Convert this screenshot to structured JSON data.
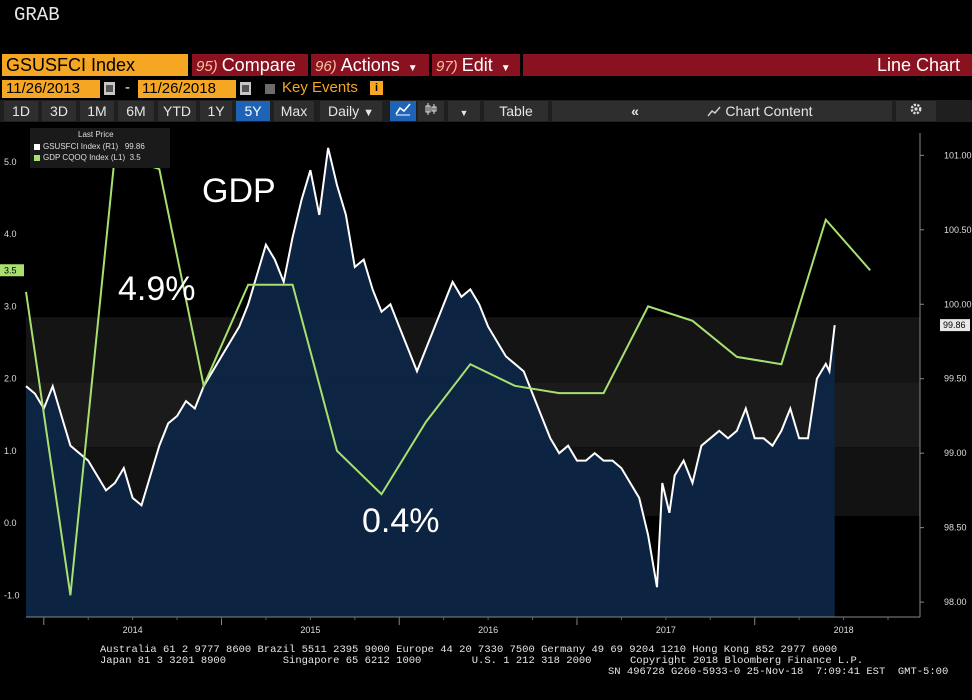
{
  "header": {
    "grab_label": "GRAB"
  },
  "toolbar": {
    "ticker": "GSUSFCI Index",
    "compare_num": "95)",
    "compare_label": "Compare",
    "actions_num": "96)",
    "actions_label": "Actions",
    "edit_num": "97)",
    "edit_label": "Edit",
    "chart_type": "Line Chart"
  },
  "dates": {
    "start": "11/26/2013",
    "end": "11/26/2018",
    "separator": "-",
    "key_events": "Key Events"
  },
  "periods": [
    "1D",
    "3D",
    "1M",
    "6M",
    "YTD",
    "1Y",
    "5Y",
    "Max"
  ],
  "active_period": "5Y",
  "frequency": "Daily",
  "table_label": "Table",
  "chart_content_label": "Chart Content",
  "legend": {
    "header": "Last Price",
    "items": [
      {
        "label": "GSUSFCI Index  (R1)",
        "value": "99.86",
        "color": "#ffffff"
      },
      {
        "label": "GDP CQOQ Index  (L1)",
        "value": "3.5",
        "color": "#a8e070"
      }
    ]
  },
  "annotations": {
    "gdp": "GDP",
    "high": "4.9%",
    "low": "0.4%"
  },
  "footer": {
    "line1": "Australia 61 2 9777 8600 Brazil 5511 2395 9000 Europe 44 20 7330 7500 Germany 49 69 9204 1210 Hong Kong 852 2977 6000",
    "line2a": "Japan 81 3 3201 8900         Singapore 65 6212 1000        U.S. 1 212 318 2000",
    "line2b": "Copyright 2018 Bloomberg Finance L.P.",
    "line3": "SN 496728 G260-5933-0 25-Nov-18  7:09:41 EST  GMT-5:00"
  },
  "chart_data": {
    "type": "line",
    "left_axis": {
      "ticks": [
        "-1.0",
        "0.0",
        "1.0",
        "2.0",
        "3.0",
        "4.0",
        "5.0"
      ],
      "ylim": [
        -1.3,
        5.4
      ],
      "current_tag": "3.5"
    },
    "right_axis": {
      "ticks": [
        "98.00",
        "98.50",
        "99.00",
        "99.50",
        "100.00",
        "100.50",
        "101.00"
      ],
      "ylim": [
        97.9,
        101.15
      ],
      "current_tag": "99.86"
    },
    "x_axis": {
      "ticks": [
        "2014",
        "2015",
        "2016",
        "2017",
        "2018"
      ],
      "xlim": [
        2013.9,
        2018.93
      ]
    },
    "series": [
      {
        "name": "GSUSFCI Index",
        "axis": "right",
        "color": "#ffffff",
        "fill": true,
        "points": [
          [
            2013.9,
            99.45
          ],
          [
            2013.95,
            99.4
          ],
          [
            2014.0,
            99.3
          ],
          [
            2014.05,
            99.45
          ],
          [
            2014.1,
            99.25
          ],
          [
            2014.15,
            99.05
          ],
          [
            2014.2,
            99.0
          ],
          [
            2014.25,
            98.95
          ],
          [
            2014.3,
            98.85
          ],
          [
            2014.35,
            98.75
          ],
          [
            2014.4,
            98.8
          ],
          [
            2014.45,
            98.9
          ],
          [
            2014.5,
            98.7
          ],
          [
            2014.55,
            98.65
          ],
          [
            2014.6,
            98.85
          ],
          [
            2014.65,
            99.05
          ],
          [
            2014.7,
            99.2
          ],
          [
            2014.75,
            99.25
          ],
          [
            2014.8,
            99.35
          ],
          [
            2014.85,
            99.3
          ],
          [
            2014.9,
            99.45
          ],
          [
            2014.95,
            99.55
          ],
          [
            2015.0,
            99.65
          ],
          [
            2015.05,
            99.75
          ],
          [
            2015.1,
            99.85
          ],
          [
            2015.15,
            100.0
          ],
          [
            2015.2,
            100.2
          ],
          [
            2015.25,
            100.4
          ],
          [
            2015.3,
            100.3
          ],
          [
            2015.35,
            100.15
          ],
          [
            2015.4,
            100.45
          ],
          [
            2015.45,
            100.7
          ],
          [
            2015.5,
            100.9
          ],
          [
            2015.55,
            100.6
          ],
          [
            2015.6,
            101.05
          ],
          [
            2015.62,
            100.95
          ],
          [
            2015.65,
            100.8
          ],
          [
            2015.7,
            100.6
          ],
          [
            2015.75,
            100.25
          ],
          [
            2015.8,
            100.3
          ],
          [
            2015.85,
            100.1
          ],
          [
            2015.9,
            99.95
          ],
          [
            2015.95,
            100.0
          ],
          [
            2016.0,
            99.85
          ],
          [
            2016.05,
            99.7
          ],
          [
            2016.1,
            99.55
          ],
          [
            2016.15,
            99.7
          ],
          [
            2016.2,
            99.85
          ],
          [
            2016.25,
            100.0
          ],
          [
            2016.3,
            100.15
          ],
          [
            2016.35,
            100.05
          ],
          [
            2016.4,
            100.1
          ],
          [
            2016.45,
            100.0
          ],
          [
            2016.5,
            99.85
          ],
          [
            2016.55,
            99.75
          ],
          [
            2016.6,
            99.65
          ],
          [
            2016.65,
            99.6
          ],
          [
            2016.7,
            99.55
          ],
          [
            2016.75,
            99.4
          ],
          [
            2016.8,
            99.25
          ],
          [
            2016.85,
            99.1
          ],
          [
            2016.9,
            99.0
          ],
          [
            2016.95,
            99.05
          ],
          [
            2017.0,
            98.95
          ],
          [
            2017.05,
            98.95
          ],
          [
            2017.1,
            99.0
          ],
          [
            2017.15,
            98.95
          ],
          [
            2017.2,
            98.95
          ],
          [
            2017.25,
            98.9
          ],
          [
            2017.3,
            98.8
          ],
          [
            2017.35,
            98.7
          ],
          [
            2017.4,
            98.45
          ],
          [
            2017.45,
            98.1
          ],
          [
            2017.48,
            98.8
          ],
          [
            2017.52,
            98.6
          ],
          [
            2017.55,
            98.85
          ],
          [
            2017.6,
            98.95
          ],
          [
            2017.65,
            98.8
          ],
          [
            2017.7,
            99.05
          ],
          [
            2017.75,
            99.1
          ],
          [
            2017.8,
            99.15
          ],
          [
            2017.85,
            99.1
          ],
          [
            2017.9,
            99.15
          ],
          [
            2017.95,
            99.3
          ],
          [
            2018.0,
            99.1
          ],
          [
            2018.05,
            99.1
          ],
          [
            2018.1,
            99.05
          ],
          [
            2018.15,
            99.15
          ],
          [
            2018.2,
            99.3
          ],
          [
            2018.25,
            99.1
          ],
          [
            2018.3,
            99.1
          ],
          [
            2018.35,
            99.5
          ],
          [
            2018.4,
            99.6
          ],
          [
            2018.42,
            99.55
          ],
          [
            2018.45,
            99.86
          ]
        ]
      },
      {
        "name": "GDP CQOQ Index",
        "axis": "left",
        "color": "#a8e070",
        "fill": false,
        "points": [
          [
            2013.9,
            3.2
          ],
          [
            2014.15,
            -1.0
          ],
          [
            2014.4,
            5.1
          ],
          [
            2014.65,
            4.9
          ],
          [
            2014.9,
            1.9
          ],
          [
            2015.15,
            3.3
          ],
          [
            2015.4,
            3.3
          ],
          [
            2015.65,
            1.0
          ],
          [
            2015.9,
            0.4
          ],
          [
            2016.15,
            1.4
          ],
          [
            2016.4,
            2.2
          ],
          [
            2016.65,
            1.9
          ],
          [
            2016.9,
            1.8
          ],
          [
            2017.15,
            1.8
          ],
          [
            2017.4,
            3.0
          ],
          [
            2017.65,
            2.8
          ],
          [
            2017.9,
            2.3
          ],
          [
            2018.15,
            2.2
          ],
          [
            2018.4,
            4.2
          ],
          [
            2018.65,
            3.5
          ]
        ]
      }
    ]
  }
}
